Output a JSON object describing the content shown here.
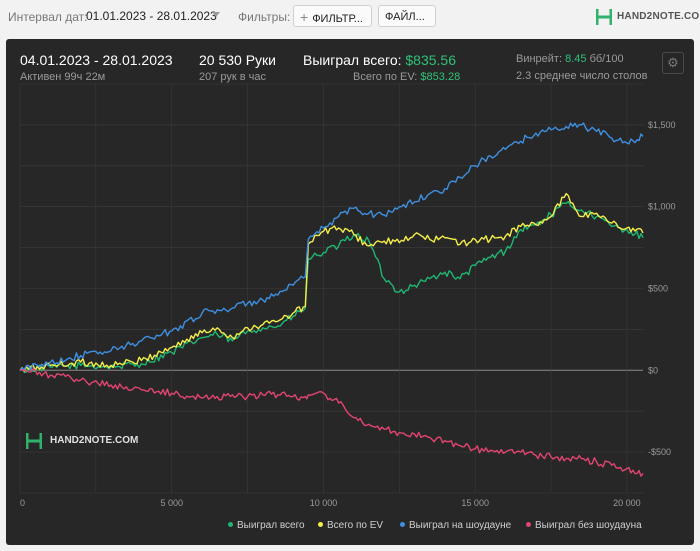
{
  "toolbar": {
    "date_interval_label": "Интервал дат:",
    "date_interval_value": "01.01.2023 - 28.01.2023",
    "filters_label": "Фильтры:",
    "filter_button_label": "ФИЛЬТР...",
    "file_button_label": "ФАЙЛ...",
    "brand_name": "HAND2NOTE.COM"
  },
  "summary": {
    "period": "04.01.2023 - 28.01.2023",
    "active_time": "Активен 99ч 22м",
    "hands": "20 530 Руки",
    "hands_per_hour": "207 рук в час",
    "won_total_label": "Выиграл всего:",
    "won_total_value": "$835.56",
    "ev_total_label": "Всего по EV:",
    "ev_total_value": "$853.28",
    "winrate_label": "Винрейт:",
    "winrate_value": "8.45",
    "winrate_unit": "бб/100",
    "avg_tables": "2.3 среднее число столов"
  },
  "watermark": {
    "text": "HAND2NOTE.COM"
  },
  "colors": {
    "won_total": "#1fb672",
    "ev_total": "#f3ee4a",
    "showdown": "#3f8fe0",
    "non_showdown": "#e2456f",
    "panel_bg": "#272727",
    "grid": "#3d3d3d",
    "zero_line": "#8a8a8a"
  },
  "chart_data": {
    "type": "line",
    "title": "",
    "xlabel": "",
    "ylabel": "",
    "xlim": [
      0,
      20530
    ],
    "ylim": [
      -750,
      1750
    ],
    "x_ticks": [
      0,
      5000,
      10000,
      15000,
      20000
    ],
    "x_tick_labels": [
      "0",
      "5 000",
      "10 000",
      "15 000",
      "20 000"
    ],
    "y_ticks": [
      1500,
      1000,
      500,
      0,
      -500
    ],
    "y_tick_labels": [
      "$1,500",
      "$1,000",
      "$500",
      "$0",
      "-$500"
    ],
    "grid": true,
    "legend_position": "bottom-right",
    "x": [
      0,
      1000,
      2000,
      3000,
      4000,
      5000,
      6000,
      6500,
      7000,
      7500,
      8000,
      8500,
      9000,
      9400,
      9500,
      10000,
      10500,
      11000,
      11500,
      12000,
      12500,
      13000,
      13500,
      14000,
      14500,
      15000,
      15500,
      16000,
      16500,
      17000,
      17500,
      18000,
      18500,
      19000,
      19500,
      20000,
      20530
    ],
    "series": [
      {
        "name": "Выиграл всего",
        "color_key": "won_total",
        "values": [
          0,
          20,
          30,
          20,
          40,
          110,
          200,
          220,
          180,
          240,
          260,
          270,
          330,
          380,
          680,
          720,
          760,
          830,
          790,
          560,
          480,
          520,
          560,
          600,
          560,
          640,
          690,
          730,
          860,
          890,
          950,
          1020,
          980,
          940,
          880,
          860,
          810
        ]
      },
      {
        "name": "Всего по EV",
        "color_key": "ev_total",
        "values": [
          0,
          30,
          50,
          30,
          60,
          140,
          230,
          260,
          200,
          260,
          280,
          300,
          350,
          390,
          770,
          850,
          870,
          830,
          760,
          790,
          780,
          830,
          800,
          810,
          770,
          800,
          800,
          820,
          880,
          890,
          940,
          1080,
          940,
          960,
          900,
          870,
          840
        ]
      },
      {
        "name": "Выиграл на шоудауне",
        "color_key": "showdown",
        "values": [
          0,
          50,
          90,
          120,
          180,
          240,
          350,
          370,
          380,
          410,
          430,
          460,
          520,
          570,
          800,
          870,
          940,
          990,
          960,
          950,
          1000,
          1030,
          1080,
          1110,
          1180,
          1250,
          1310,
          1350,
          1400,
          1450,
          1470,
          1490,
          1500,
          1460,
          1420,
          1390,
          1430
        ]
      },
      {
        "name": "Выиграл без шоудауна",
        "color_key": "non_showdown",
        "values": [
          0,
          -30,
          -60,
          -90,
          -120,
          -140,
          -170,
          -160,
          -150,
          -160,
          -150,
          -150,
          -160,
          -160,
          -150,
          -140,
          -200,
          -290,
          -330,
          -360,
          -380,
          -390,
          -410,
          -430,
          -460,
          -480,
          -490,
          -500,
          -500,
          -520,
          -530,
          -540,
          -540,
          -560,
          -580,
          -600,
          -630
        ]
      }
    ]
  }
}
